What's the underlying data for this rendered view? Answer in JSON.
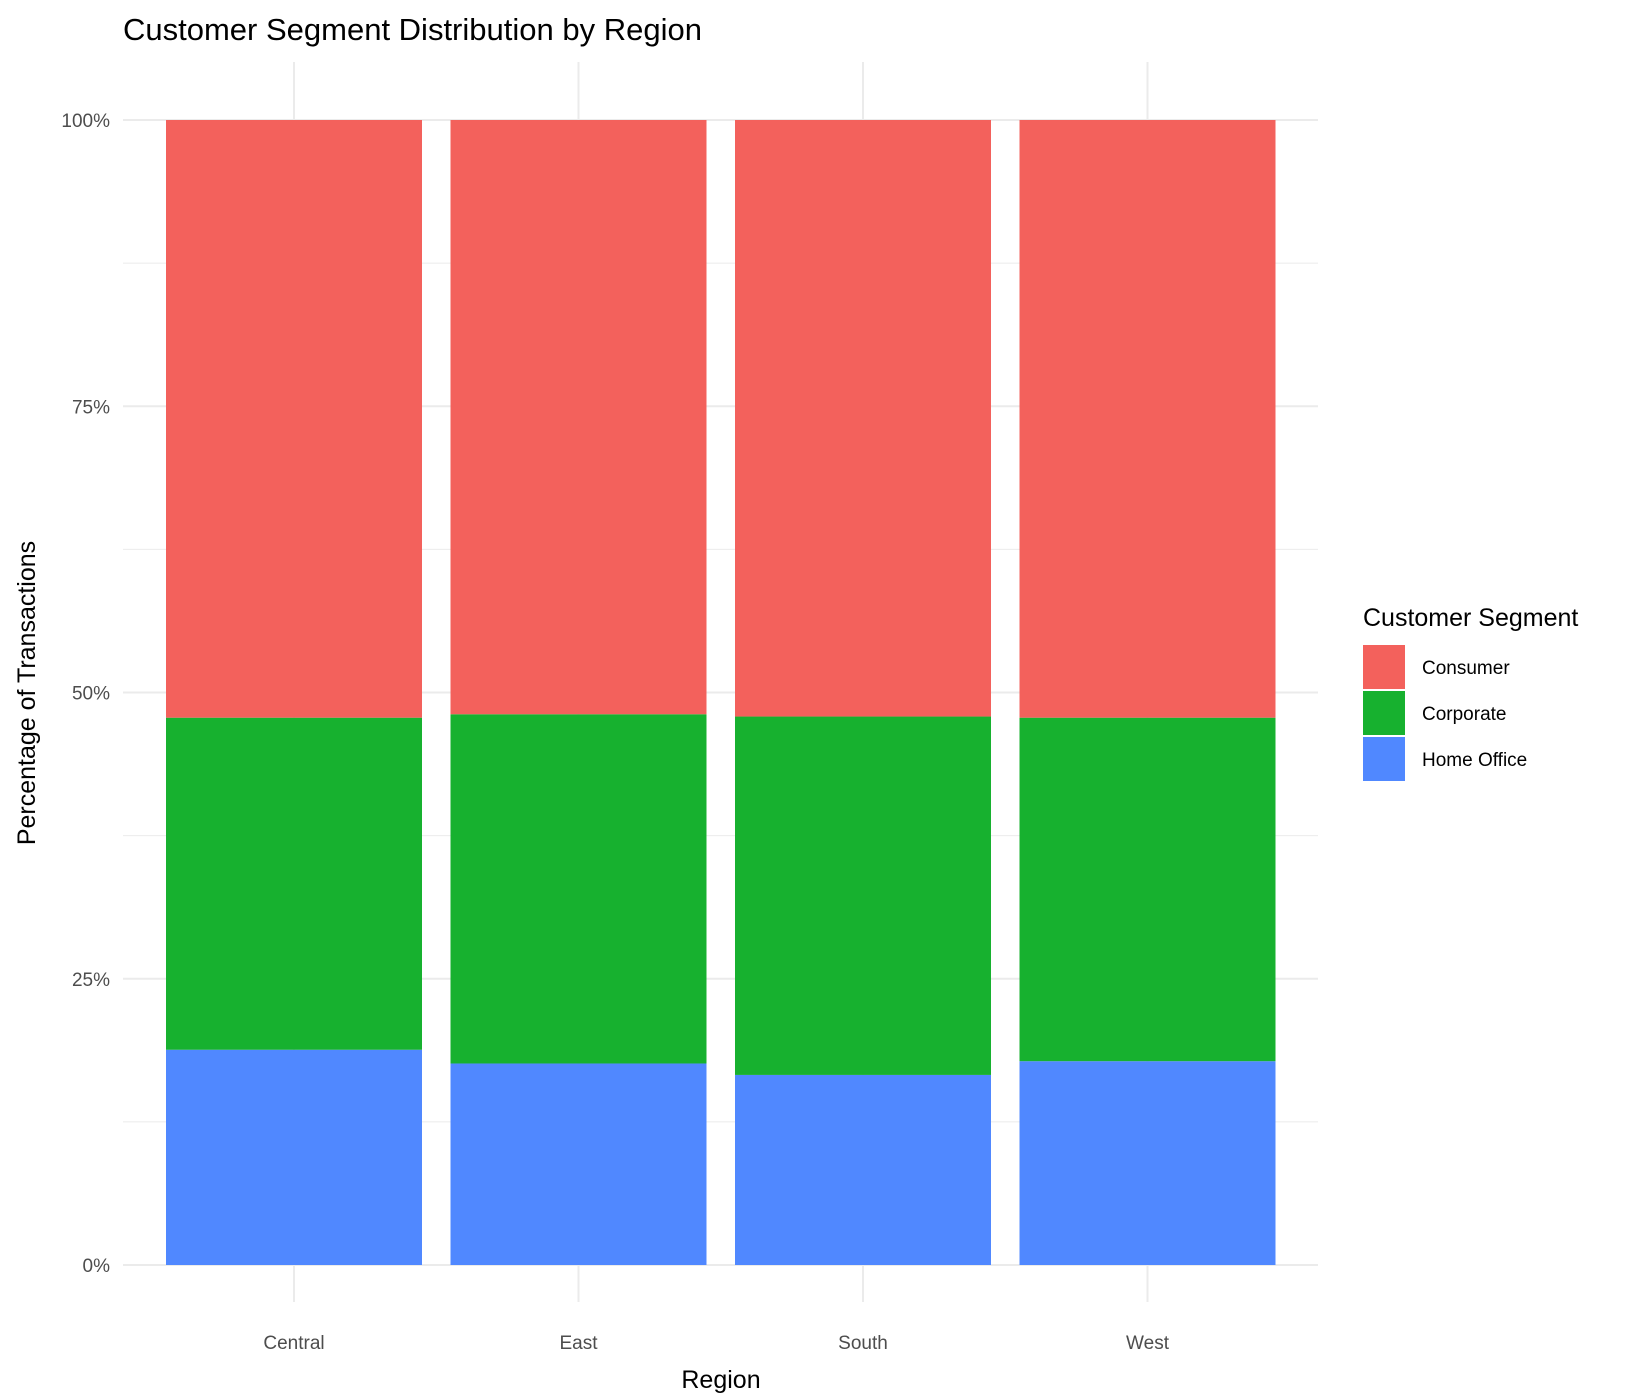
{
  "chart_data": {
    "type": "bar",
    "stacked": true,
    "normalized": true,
    "title": "Customer Segment Distribution by Region",
    "xlabel": "Region",
    "ylabel": "Percentage of Transactions",
    "categories": [
      "Central",
      "East",
      "South",
      "West"
    ],
    "series": [
      {
        "name": "Consumer",
        "color": "#f3615c",
        "values": [
          52.2,
          51.9,
          52.1,
          52.2
        ]
      },
      {
        "name": "Corporate",
        "color": "#17b12f",
        "values": [
          29.0,
          30.5,
          31.3,
          30.0
        ]
      },
      {
        "name": "Home Office",
        "color": "#5088ff",
        "values": [
          18.8,
          17.6,
          16.6,
          17.8
        ]
      }
    ],
    "stack_order_bottom_to_top": [
      "Home Office",
      "Corporate",
      "Consumer"
    ],
    "ylim": [
      0,
      100
    ],
    "yticks": [
      0,
      25,
      50,
      75,
      100
    ],
    "ytick_labels": [
      "0%",
      "25%",
      "50%",
      "75%",
      "100%"
    ],
    "grid": true,
    "legend": {
      "title": "Customer Segment",
      "position": "right"
    }
  }
}
